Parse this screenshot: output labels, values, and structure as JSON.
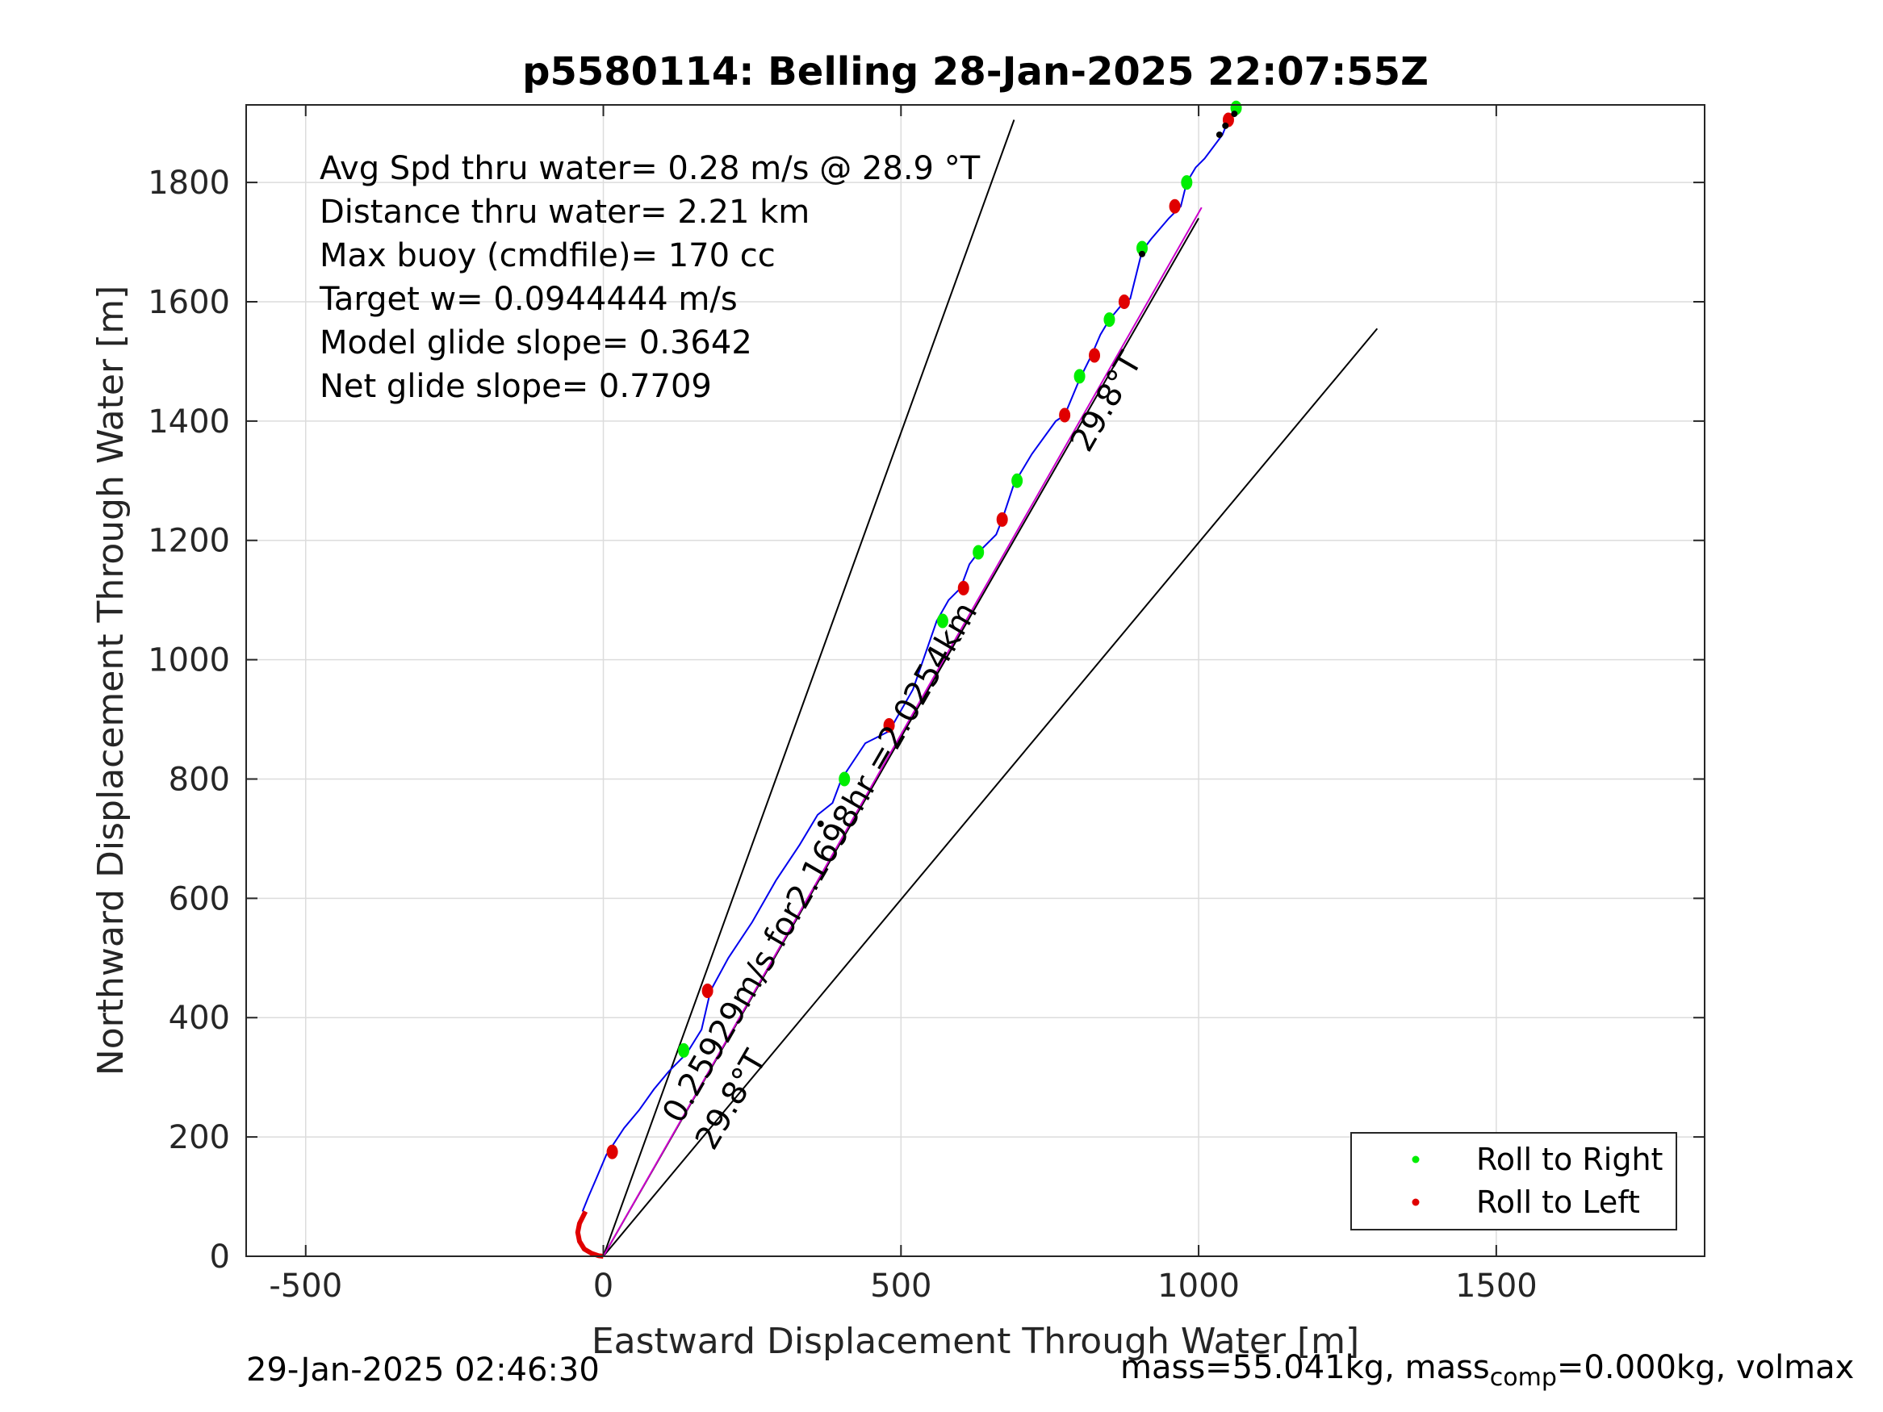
{
  "chart_data": {
    "type": "line",
    "title": "p5580114: Belling 28-Jan-2025 22:07:55Z",
    "xlabel": "Eastward Displacement Through Water [m]",
    "ylabel": "Northward Displacement Through Water [m]",
    "xlim": [
      -600,
      1850
    ],
    "ylim": [
      0,
      1930
    ],
    "xticks": [
      -500,
      0,
      500,
      1000,
      1500
    ],
    "yticks": [
      0,
      200,
      400,
      600,
      800,
      1000,
      1200,
      1400,
      1600,
      1800
    ],
    "grid": true,
    "legend_position": "bottom-right",
    "legend": [
      {
        "label": "Roll to Right",
        "color": "#00ee00"
      },
      {
        "label": "Roll to Left",
        "color": "#e00000"
      }
    ],
    "info_text": [
      "Avg Spd thru water=  0.28 m/s @  28.9 °T",
      "Distance thru water=  2.21 km",
      "Max buoy (cmdfile)= 170 cc",
      "Target w= 0.0944444 m/s",
      "Model glide slope= 0.3642",
      "Net glide slope= 0.7709"
    ],
    "annotations": [
      {
        "text": "29.8°T",
        "x": 815,
        "y": 1345,
        "rotation_deg": -60
      },
      {
        "text": "0.25929m/s for2.1698hr =2.0254km",
        "x": 130,
        "y": 220,
        "rotation_deg": -60
      },
      {
        "text": "29.8°T",
        "x": 185,
        "y": 175,
        "rotation_deg": -60
      }
    ],
    "reference_lines": [
      {
        "name": "cone-left",
        "color": "#000000",
        "points": [
          [
            0,
            0
          ],
          [
            690,
            1905
          ]
        ]
      },
      {
        "name": "cone-center",
        "color": "#000000",
        "points": [
          [
            0,
            0
          ],
          [
            1000,
            1740
          ]
        ]
      },
      {
        "name": "cone-right",
        "color": "#000000",
        "points": [
          [
            0,
            0
          ],
          [
            1300,
            1555
          ]
        ]
      },
      {
        "name": "net-track",
        "color": "#cc00cc",
        "points": [
          [
            0,
            0
          ],
          [
            1005,
            1758
          ]
        ]
      }
    ],
    "series": [
      {
        "type": "line",
        "color": "#0000ee",
        "x": [
          -35,
          -25,
          -12,
          5,
          15,
          35,
          60,
          85,
          110,
          140,
          165,
          180,
          210,
          250,
          290,
          330,
          360,
          385,
          400,
          440,
          480,
          520,
          560,
          580,
          600,
          615,
          630,
          660,
          670,
          690,
          720,
          760,
          775,
          800,
          820,
          835,
          850,
          875,
          885,
          905,
          920,
          950,
          970,
          980,
          995,
          1010,
          1040,
          1050,
          1065
        ],
        "y": [
          75,
          100,
          130,
          170,
          185,
          215,
          245,
          280,
          310,
          340,
          380,
          445,
          500,
          560,
          630,
          690,
          740,
          760,
          800,
          860,
          880,
          950,
          1065,
          1100,
          1120,
          1160,
          1180,
          1210,
          1235,
          1295,
          1345,
          1400,
          1410,
          1470,
          1510,
          1545,
          1570,
          1600,
          1605,
          1685,
          1705,
          1740,
          1760,
          1800,
          1825,
          1840,
          1880,
          1905,
          1930
        ]
      },
      {
        "type": "line",
        "color": "#e00000",
        "x": [
          -30,
          -40,
          -43,
          -40,
          -32,
          -20,
          -8,
          0
        ],
        "y": [
          75,
          55,
          40,
          25,
          12,
          5,
          1,
          0
        ]
      },
      {
        "name": "Roll to Right",
        "type": "scatter",
        "color": "#00ee00",
        "x": [
          135,
          405,
          570,
          630,
          695,
          800,
          850,
          905,
          980,
          1063
        ],
        "y": [
          345,
          800,
          1065,
          1180,
          1300,
          1475,
          1570,
          1690,
          1800,
          1925
        ]
      },
      {
        "name": "Roll to Left",
        "type": "scatter",
        "color": "#e00000",
        "x": [
          15,
          175,
          480,
          605,
          670,
          775,
          825,
          875,
          960,
          1050
        ],
        "y": [
          175,
          445,
          890,
          1120,
          1235,
          1410,
          1510,
          1600,
          1760,
          1905
        ]
      },
      {
        "type": "scatter",
        "color": "#000000",
        "x": [
          365,
          905,
          1035,
          1045,
          1060
        ],
        "y": [
          725,
          1680,
          1880,
          1895,
          1915
        ]
      }
    ]
  },
  "footer": {
    "timestamp": "29-Jan-2025 02:46:30",
    "mass_prefix": "mass=55.041kg, mass",
    "mass_subscript": "comp",
    "mass_suffix": "=0.000kg, volmax"
  }
}
